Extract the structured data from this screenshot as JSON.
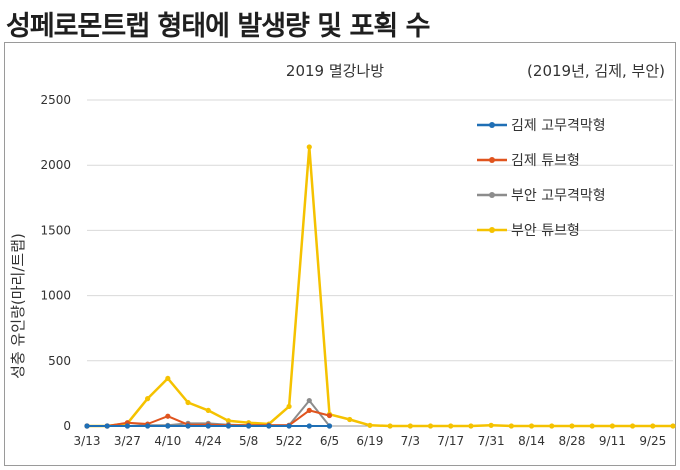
{
  "page": {
    "title": "성페로몬트랩 형태에 발생량 및 포획 수"
  },
  "chart_data": {
    "type": "line",
    "title": "2019 멸강나방",
    "subtitle": "(2019년, 김제, 부안)",
    "xlabel": "",
    "ylabel": "성충 유인량(마리/트랩)",
    "ylim": [
      0,
      2500
    ],
    "yticks": [
      0,
      500,
      1000,
      1500,
      2000,
      2500
    ],
    "grid": "horizontal",
    "legend_position": "right",
    "x": [
      "3/13",
      "3/20",
      "3/27",
      "4/3",
      "4/10",
      "4/17",
      "4/24",
      "5/1",
      "5/8",
      "5/15",
      "5/22",
      "5/29",
      "6/5",
      "6/12",
      "6/19",
      "6/26",
      "7/3",
      "7/10",
      "7/17",
      "7/24",
      "7/31",
      "8/7",
      "8/14",
      "8/21",
      "8/28",
      "9/4",
      "9/11",
      "9/18",
      "9/25",
      "10/2"
    ],
    "xtick_labels": [
      "3/13",
      "3/27",
      "4/10",
      "4/24",
      "5/8",
      "5/22",
      "6/5",
      "6/19",
      "7/3",
      "7/17",
      "7/31",
      "8/14",
      "8/28",
      "9/11",
      "9/25"
    ],
    "series": [
      {
        "name": "김제 고무격막형",
        "color": "#1f6fb5",
        "values": [
          0,
          0,
          0,
          0,
          0,
          0,
          0,
          0,
          0,
          0,
          0,
          0,
          0,
          null,
          null,
          null,
          null,
          null,
          null,
          null,
          null,
          null,
          null,
          null,
          null,
          null,
          null,
          null,
          null,
          null
        ]
      },
      {
        "name": "김제 튜브형",
        "color": "#e0541e",
        "values": [
          0,
          0,
          25,
          15,
          75,
          10,
          10,
          5,
          5,
          5,
          5,
          120,
          80,
          null,
          null,
          null,
          null,
          null,
          null,
          null,
          null,
          null,
          null,
          null,
          null,
          null,
          null,
          null,
          null,
          null
        ]
      },
      {
        "name": "부안 고무격막형",
        "color": "#8c8c8c",
        "values": [
          0,
          0,
          0,
          5,
          5,
          20,
          20,
          10,
          5,
          5,
          5,
          195,
          0,
          null,
          null,
          null,
          null,
          null,
          null,
          null,
          null,
          null,
          null,
          null,
          null,
          null,
          null,
          null,
          null,
          null
        ]
      },
      {
        "name": "부안 튜브형",
        "color": "#f5c200",
        "values": [
          0,
          0,
          20,
          210,
          365,
          180,
          120,
          40,
          25,
          15,
          150,
          2140,
          90,
          50,
          5,
          0,
          0,
          0,
          0,
          0,
          5,
          0,
          0,
          0,
          0,
          0,
          0,
          0,
          0,
          0
        ]
      }
    ]
  }
}
